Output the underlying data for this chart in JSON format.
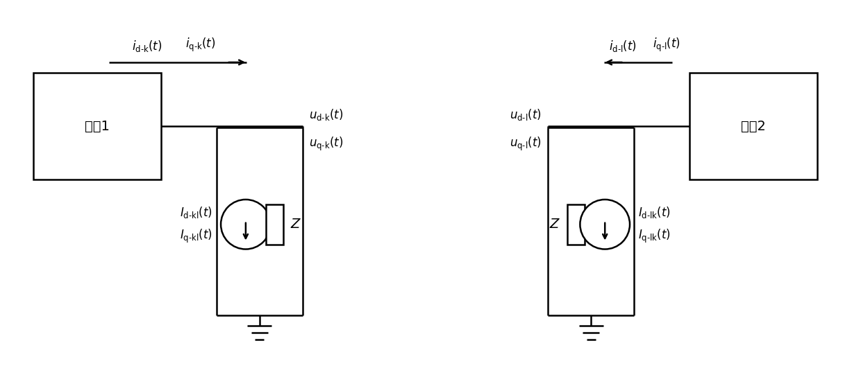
{
  "bg_color": "#ffffff",
  "line_color": "#000000",
  "fig_width": 12.4,
  "fig_height": 5.44,
  "network1_label": "网络1",
  "network2_label": "网络2",
  "font_size": 13,
  "font_size_label": 12,
  "lw": 1.8
}
